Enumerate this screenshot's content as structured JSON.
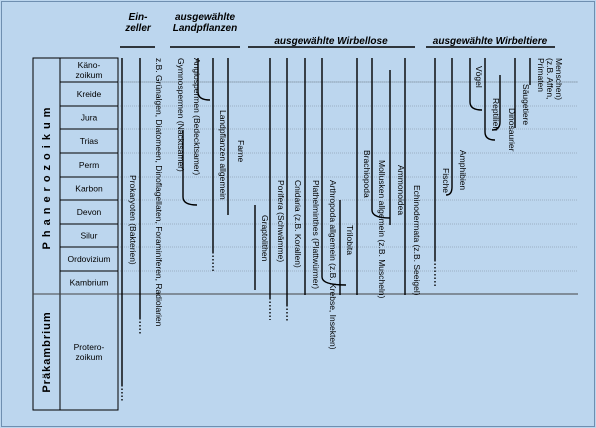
{
  "headers": [
    [
      "Ein-",
      "zeller"
    ],
    [
      "ausgewählte",
      "Landpflanzen"
    ],
    [
      "ausgewählte Wirbellose"
    ],
    [
      "ausgewählte Wirbeltiere"
    ]
  ],
  "eras": [
    "Phanerozoikum",
    "Präkambrium"
  ],
  "periods": [
    [
      "Käno-",
      "zoikum"
    ],
    [
      "Kreide"
    ],
    [
      "Jura"
    ],
    [
      "Trias"
    ],
    [
      "Perm"
    ],
    [
      "Karbon"
    ],
    [
      "Devon"
    ],
    [
      "Silur"
    ],
    [
      "Ordovizium"
    ],
    [
      "Kambrium"
    ],
    [
      "Protero-",
      "zoikum"
    ]
  ],
  "lineages": [
    [
      "Prokaryoten (Bakterien)"
    ],
    [
      "z.B. Grünalgen, Diatomeen, Dinoflagellaten, Foraminiferen, Radiolarien"
    ],
    [
      "Gymnospermen (Nacktsamer)"
    ],
    [
      "Angiospermen (Bedecktsamer)"
    ],
    [
      "Landpflanzen allgemein"
    ],
    [
      "Farne"
    ],
    [
      "Graptolithen"
    ],
    [
      "Porifera (Schwämme)"
    ],
    [
      "Cnidaria (z.B. Korallen)"
    ],
    [
      "Plathelminthes (Plattwürmer)"
    ],
    [
      "Arthropoda allgemein (z.B. Krebse, Insekten)"
    ],
    [
      "Trilobita"
    ],
    [
      "Brachiopoda"
    ],
    [
      "Mollusken allgemein (z.B. Muscheln)"
    ],
    [
      "Ammonoidea"
    ],
    [
      "Echinodermata (z.B. Seeigel)"
    ],
    [
      "Fische"
    ],
    [
      "Amphibien"
    ],
    [
      "Vögel"
    ],
    [
      "Reptilien"
    ],
    [
      "Dinosaurier"
    ],
    [
      "Säugetiere"
    ],
    [
      "Primaten",
      "(z.B. Affen,",
      "Menschen)"
    ]
  ]
}
